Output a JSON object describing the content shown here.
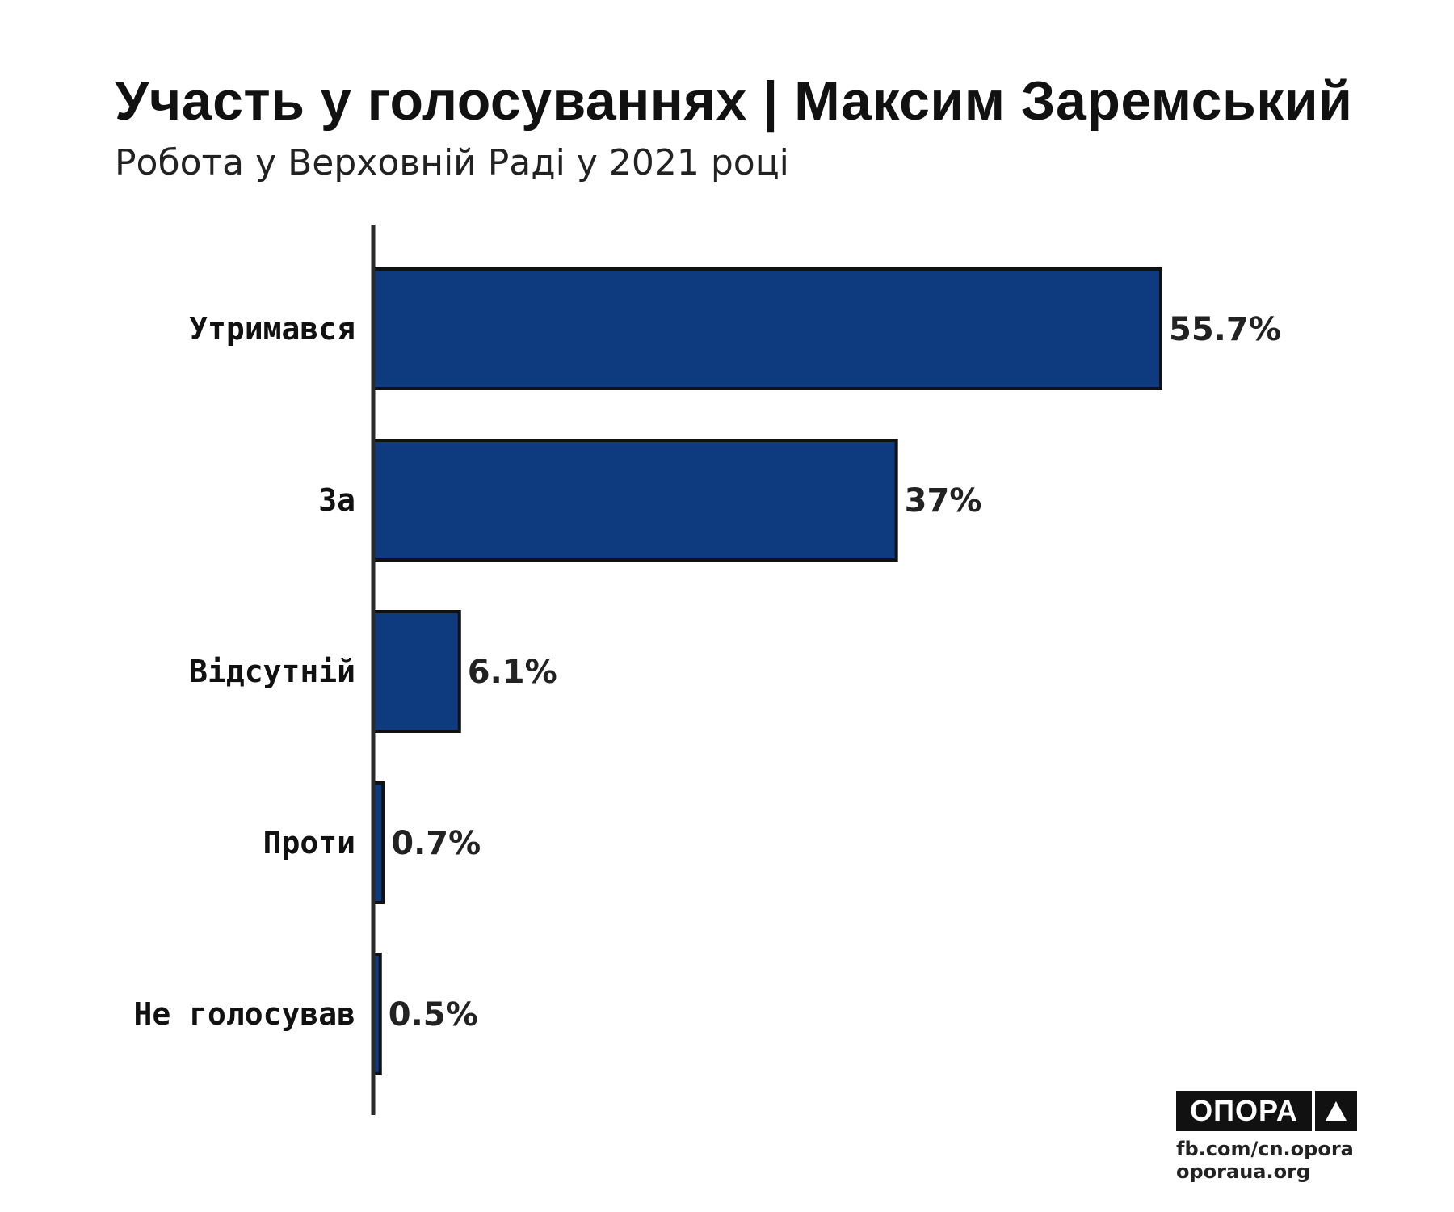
{
  "header": {
    "title": "Участь у голосуваннях | Максим Заремський",
    "subtitle": "Робота у Верховній Раді у 2021 році"
  },
  "chart_data": {
    "type": "bar",
    "orientation": "horizontal",
    "title": "Участь у голосуваннях | Максим Заремський",
    "subtitle": "Робота у Верховній Раді у 2021 році",
    "categories": [
      "Утримався",
      "За",
      "Відсутній",
      "Проти",
      "Не голосував"
    ],
    "values": [
      55.7,
      37,
      6.1,
      0.7,
      0.5
    ],
    "value_labels": [
      "55.7%",
      "37%",
      "6.1%",
      "0.7%",
      "0.5%"
    ],
    "unit": "%",
    "xlim": [
      0,
      55.7
    ],
    "grid": false,
    "legend": "none",
    "bar_color": "#0e3a80",
    "bar_outline_color": "#111111"
  },
  "branding": {
    "logo_text": "ОПОРА",
    "logo_icon": "triangle-icon",
    "links": [
      "fb.com/cn.opora",
      "oporaua.org"
    ]
  }
}
